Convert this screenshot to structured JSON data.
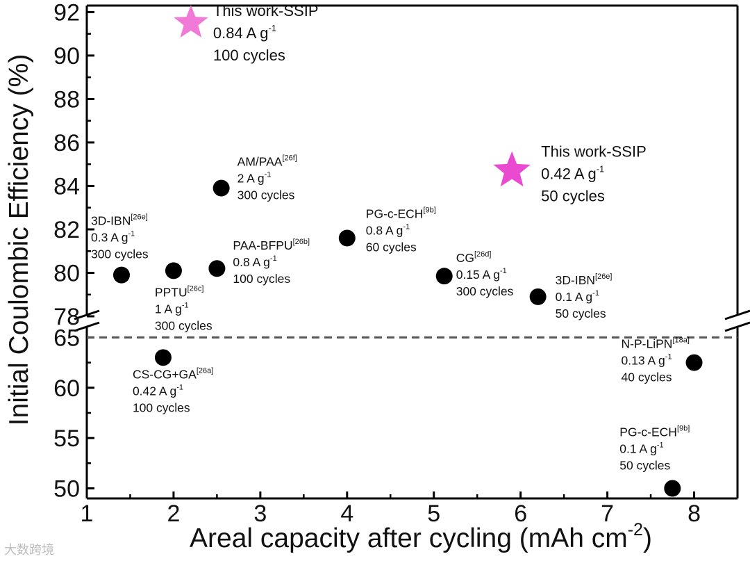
{
  "chart_data": {
    "type": "scatter",
    "xlabel": "Areal capacity after cycling (mAh cm",
    "xlabel_sup": "-2",
    "xlabel_close": ")",
    "ylabel": "Initial Coulombic Efficiency (%)",
    "xlim": [
      1,
      8.5
    ],
    "x_ticks": [
      "1",
      "2",
      "3",
      "4",
      "5",
      "6",
      "7",
      "8"
    ],
    "y_axis_break": true,
    "ylim_upper": [
      78,
      92.3
    ],
    "y_ticks_upper": [
      "78",
      "80",
      "82",
      "84",
      "86",
      "88",
      "90",
      "92"
    ],
    "ylim_lower": [
      49,
      66.2
    ],
    "y_ticks_lower": [
      "50",
      "55",
      "60",
      "65"
    ],
    "reference_line": {
      "y": 65,
      "style": "dashed"
    },
    "points": [
      {
        "x": 1.4,
        "y": 79.9,
        "name": "3D-IBN",
        "ref": "[26e]",
        "rate": "0.3 A g",
        "cycles": "300 cycles"
      },
      {
        "x": 2.0,
        "y": 80.1,
        "name": "PPTU",
        "ref": "[26c]",
        "rate": "1 A g",
        "cycles": "300 cycles"
      },
      {
        "x": 2.5,
        "y": 80.2,
        "name": "PAA-BFPU",
        "ref": "[26b]",
        "rate": "0.8 A g",
        "cycles": "100 cycles"
      },
      {
        "x": 2.55,
        "y": 83.9,
        "name": "AM/PAA",
        "ref": "[26f]",
        "rate": "2 A g",
        "cycles": "300 cycles"
      },
      {
        "x": 4.0,
        "y": 81.6,
        "name": "PG-c-ECH",
        "ref": "[9b]",
        "rate": "0.8 A g",
        "cycles": "60 cycles"
      },
      {
        "x": 5.12,
        "y": 79.85,
        "name": "CG",
        "ref": "[26d]",
        "rate": "0.15 A g",
        "cycles": "300 cycles"
      },
      {
        "x": 6.2,
        "y": 78.9,
        "name": "3D-IBN",
        "ref": "[26e]",
        "rate": "0.1 A g",
        "cycles": "50 cycles"
      },
      {
        "x": 1.88,
        "y": 63.0,
        "name": "CS-CG+GA",
        "ref": "[26a]",
        "rate": "0.42 A g",
        "cycles": "100 cycles"
      },
      {
        "x": 8.0,
        "y": 62.5,
        "name": "N-P-LiPN",
        "ref": "[18a]",
        "rate": "0.13 A g",
        "cycles": "40 cycles"
      },
      {
        "x": 7.75,
        "y": 50.0,
        "name": "PG-c-ECH",
        "ref": "[9b]",
        "rate": "0.1 A g",
        "cycles": "50 cycles"
      }
    ],
    "this_work": [
      {
        "x": 2.2,
        "y": 91.5,
        "name": "This work-SSIP",
        "rate": "0.84 A g",
        "cycles": "100 cycles",
        "color": "#f07ad6"
      },
      {
        "x": 5.9,
        "y": 84.7,
        "name": "This work-SSIP",
        "rate": "0.42 A g",
        "cycles": "50 cycles",
        "color": "#e94ad0"
      }
    ],
    "rate_unit_sup": "-1",
    "marker_color": "#000000"
  },
  "watermark": "大数跨境"
}
